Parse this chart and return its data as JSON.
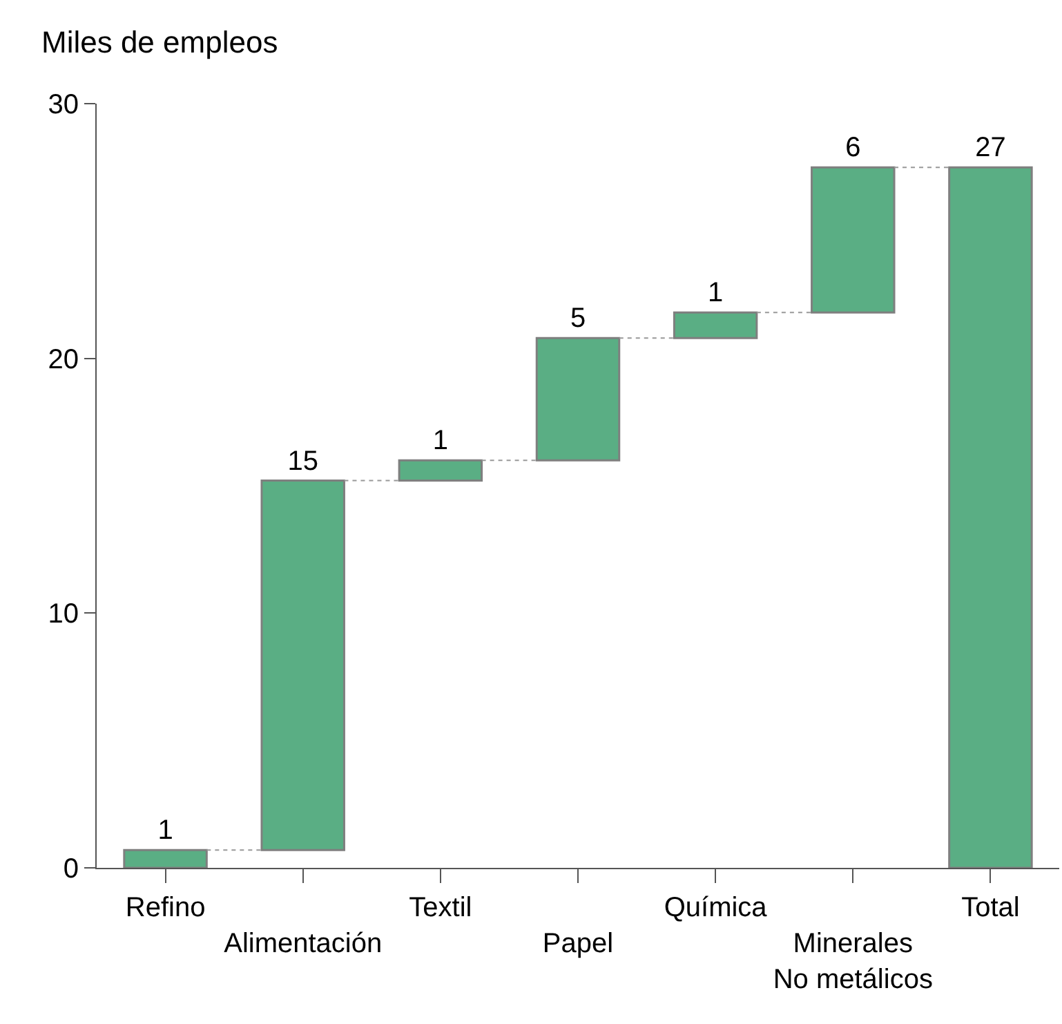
{
  "chart_data": {
    "type": "bar",
    "ylabel": "Miles de empleos",
    "categories": [
      "Refino",
      "Alimentación",
      "Textil",
      "Papel",
      "Química",
      "Minerales\nNo metálicos",
      "Total"
    ],
    "values": [
      0.7,
      14.5,
      0.8,
      4.8,
      1.0,
      5.7,
      27.5
    ],
    "base": [
      0,
      0.7,
      15.2,
      16.0,
      20.8,
      21.8,
      0
    ],
    "value_labels": [
      "1",
      "15",
      "1",
      "5",
      "1",
      "6",
      "27"
    ],
    "color": "#5aae84",
    "ylim": [
      0,
      30
    ],
    "yticks": [
      0,
      10,
      20,
      30
    ]
  }
}
